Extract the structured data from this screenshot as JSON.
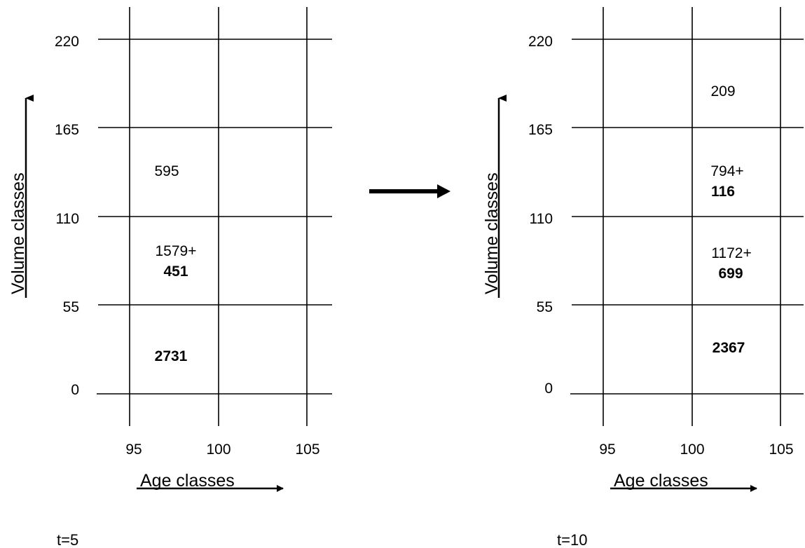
{
  "panels": [
    {
      "time_label": "t=5",
      "y_axis_label": "Volume classes",
      "x_axis_label": "Age classes",
      "y_ticks": [
        "0",
        "55",
        "110",
        "165",
        "220"
      ],
      "x_ticks": [
        "95",
        "100",
        "105"
      ],
      "cells": [
        {
          "plain": "595",
          "bold": ""
        },
        {
          "plain": "1579+",
          "bold": "451"
        },
        {
          "plain": "",
          "bold": "2731"
        }
      ]
    },
    {
      "time_label": "t=10",
      "y_axis_label": "Volume classes",
      "x_axis_label": "Age classes",
      "y_ticks": [
        "0",
        "55",
        "110",
        "165",
        "220"
      ],
      "x_ticks": [
        "95",
        "100",
        "105"
      ],
      "cells": [
        {
          "plain": "209",
          "bold": ""
        },
        {
          "plain": "794+",
          "bold": "116"
        },
        {
          "plain": "1172+",
          "bold": "699"
        },
        {
          "plain": "",
          "bold": "2367"
        }
      ]
    }
  ]
}
